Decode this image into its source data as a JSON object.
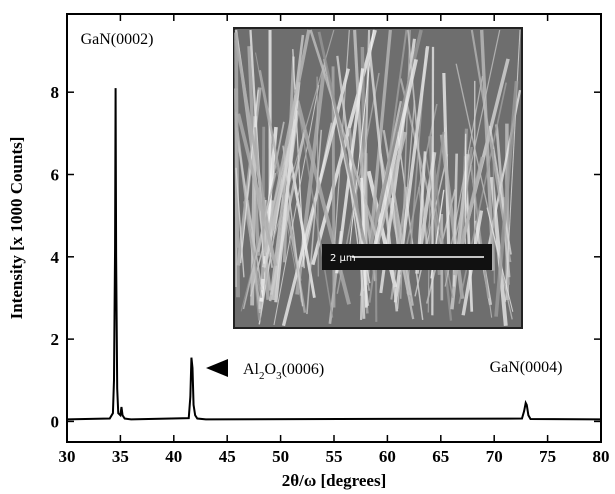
{
  "chart_data": {
    "type": "line",
    "xlabel": "2θ/ω [degrees]",
    "ylabel": "Intensity  [x 1000 Counts]",
    "x": [
      30,
      34,
      34.3,
      34.4,
      34.5,
      34.55,
      34.6,
      34.7,
      34.8,
      35.0,
      35.1,
      35.2,
      35.4,
      36,
      41.4,
      41.55,
      41.65,
      41.75,
      41.85,
      42.0,
      42.2,
      43,
      72.6,
      72.8,
      72.95,
      73.05,
      73.2,
      73.4,
      80
    ],
    "series": [
      {
        "color": "#000000",
        "values": [
          0.05,
          0.07,
          0.2,
          1.0,
          4.2,
          8.1,
          4.0,
          0.8,
          0.2,
          0.15,
          0.35,
          0.15,
          0.07,
          0.05,
          0.08,
          0.6,
          1.55,
          1.3,
          0.4,
          0.15,
          0.07,
          0.05,
          0.07,
          0.25,
          0.45,
          0.4,
          0.15,
          0.06,
          0.05
        ]
      }
    ],
    "xlim": [
      30,
      80
    ],
    "xticks": [
      30,
      35,
      40,
      45,
      50,
      55,
      60,
      65,
      70,
      75,
      80
    ],
    "ylim": [
      -0.5,
      9.9
    ],
    "yticks": [
      0,
      2,
      4,
      6,
      8
    ],
    "annotations": [
      {
        "text": "GaN(0002)"
      },
      {
        "parts": [
          "Al",
          "2",
          "O",
          "3",
          "(0006)"
        ]
      },
      {
        "text": "GaN(0004)"
      }
    ],
    "inset_scale_label": "2 µm"
  }
}
